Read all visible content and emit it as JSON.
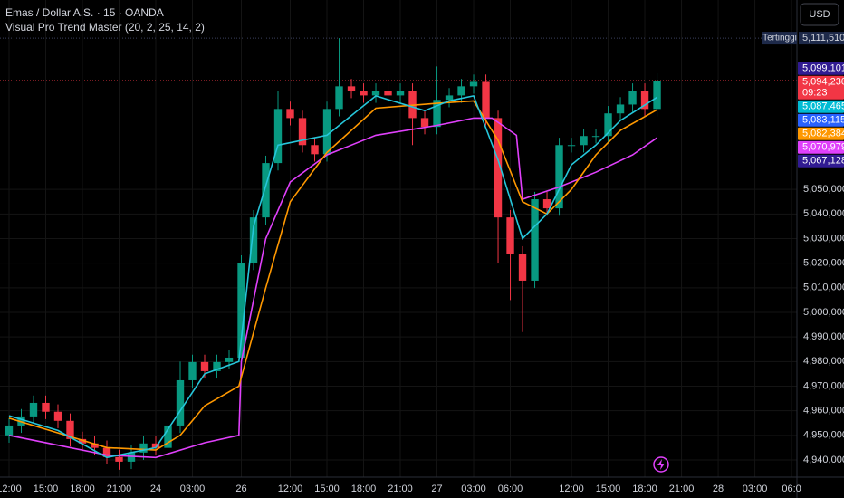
{
  "chart_data": {
    "type": "candlestick",
    "title": "Emas / Dollar A.S. · 15 · OANDA",
    "subtitle": "Visual Pro Trend Master (20, 2, 25, 14, 2)",
    "currency_button": "USD",
    "up_color": "#089981",
    "down_color": "#f23645",
    "grid": true,
    "ylim": [
      4933000,
      5127000
    ],
    "xlim": [
      -0.74,
      64.44
    ],
    "yticks": [
      {
        "value": 4940000,
        "label": "4,940,000"
      },
      {
        "value": 4950000,
        "label": "4,950,000"
      },
      {
        "value": 4960000,
        "label": "4,960,000"
      },
      {
        "value": 4970000,
        "label": "4,970,000"
      },
      {
        "value": 4980000,
        "label": "4,980,000"
      },
      {
        "value": 4990000,
        "label": "4,990,000"
      },
      {
        "value": 5000000,
        "label": "5,000,000"
      },
      {
        "value": 5010000,
        "label": "5,010,000"
      },
      {
        "value": 5020000,
        "label": "5,020,000"
      },
      {
        "value": 5030000,
        "label": "5,030,000"
      },
      {
        "value": 5040000,
        "label": "5,040,000"
      },
      {
        "value": 5050000,
        "label": "5,050,000"
      }
    ],
    "xticks": [
      {
        "value": 0,
        "label": "12:00"
      },
      {
        "value": 3,
        "label": "15:00"
      },
      {
        "value": 6,
        "label": "18:00"
      },
      {
        "value": 9,
        "label": "21:00"
      },
      {
        "value": 12,
        "label": "24"
      },
      {
        "value": 15,
        "label": "03:00"
      },
      {
        "value": 19,
        "label": "26"
      },
      {
        "value": 23,
        "label": "12:00"
      },
      {
        "value": 26,
        "label": "15:00"
      },
      {
        "value": 29,
        "label": "18:00"
      },
      {
        "value": 32,
        "label": "21:00"
      },
      {
        "value": 35,
        "label": "27"
      },
      {
        "value": 38,
        "label": "03:00"
      },
      {
        "value": 41,
        "label": "06:00"
      },
      {
        "value": 46,
        "label": "12:00"
      },
      {
        "value": 49,
        "label": "15:00"
      },
      {
        "value": 52,
        "label": "18:00"
      },
      {
        "value": 55,
        "label": "21:00"
      },
      {
        "value": 58,
        "label": "28"
      },
      {
        "value": 61,
        "label": "03:00"
      },
      {
        "value": 64,
        "label": "06:0"
      }
    ],
    "x": [
      0,
      1,
      2,
      3,
      4,
      5,
      6,
      7,
      8,
      9,
      10,
      11,
      12,
      13,
      14,
      15,
      16,
      17,
      18,
      19,
      20,
      21,
      22,
      23,
      24,
      25,
      26,
      27,
      28,
      29,
      30,
      31,
      32,
      33,
      34,
      35,
      36,
      37,
      38,
      39,
      40,
      41,
      42,
      43,
      44,
      45,
      46,
      47,
      48,
      49,
      50,
      51,
      52,
      53
    ],
    "open": [
      4950000,
      4954000,
      4957700,
      4963200,
      4959600,
      4955900,
      4948500,
      4946700,
      4944900,
      4941200,
      4939300,
      4943000,
      4946700,
      4944900,
      4954000,
      4972400,
      4979800,
      4976100,
      4979800,
      4981600,
      5020200,
      5038600,
      5060700,
      5082700,
      5079000,
      5068000,
      5064300,
      5082700,
      5091900,
      5090100,
      5088200,
      5090100,
      5088200,
      5090100,
      5079000,
      5075400,
      5086400,
      5088200,
      5091900,
      5093700,
      5079000,
      5038600,
      5023900,
      5012900,
      5046000,
      5042300,
      5068000,
      5068000,
      5071700,
      5071700,
      5080900,
      5084500,
      5090100,
      5082700
    ],
    "high": [
      4957000,
      4960700,
      4966200,
      4966200,
      4962600,
      4958900,
      4951500,
      4949700,
      4947900,
      4944200,
      4946000,
      4949700,
      4949700,
      4957000,
      4980000,
      4982800,
      4982800,
      4982800,
      4984600,
      5023200,
      5041600,
      5063700,
      5090000,
      5085700,
      5082000,
      5071000,
      5085700,
      5111510,
      5094900,
      5093100,
      5093100,
      5093100,
      5093100,
      5093100,
      5082000,
      5100000,
      5091200,
      5094900,
      5096700,
      5096700,
      5082000,
      5041600,
      5026900,
      5049000,
      5049000,
      5071000,
      5071000,
      5074700,
      5074700,
      5083900,
      5087500,
      5093100,
      5093100,
      5097230
    ],
    "low": [
      4947000,
      4951000,
      4954700,
      4956600,
      4952900,
      4945500,
      4943700,
      4941900,
      4938200,
      4936000,
      4936300,
      4940000,
      4941900,
      4938000,
      4951000,
      4969400,
      4973100,
      4973100,
      4976800,
      4978600,
      5017200,
      5035600,
      5057700,
      5076000,
      5065000,
      5061300,
      5061300,
      5079700,
      5087100,
      5085200,
      5085200,
      5085200,
      5085200,
      5068000,
      5072400,
      5072400,
      5083400,
      5085200,
      5088900,
      5076000,
      5020000,
      5005000,
      4992000,
      5009900,
      5039300,
      5039300,
      5065000,
      5065000,
      5068700,
      5068700,
      5077900,
      5081500,
      5079700,
      5079700
    ],
    "close": [
      4954000,
      4957700,
      4963200,
      4959600,
      4955900,
      4948500,
      4946700,
      4944900,
      4941200,
      4939300,
      4943000,
      4946700,
      4944900,
      4954000,
      4972400,
      4979800,
      4976100,
      4979800,
      4981600,
      5020200,
      5038600,
      5060700,
      5082700,
      5079000,
      5068000,
      5064300,
      5082700,
      5091900,
      5090100,
      5088200,
      5090100,
      5088200,
      5090100,
      5079000,
      5075400,
      5086400,
      5088200,
      5091900,
      5093700,
      5079000,
      5038600,
      5023900,
      5012900,
      5046000,
      5042300,
      5068000,
      5068000,
      5071700,
      5071700,
      5080900,
      5084500,
      5090100,
      5082700,
      5094230
    ],
    "series": [
      {
        "color": "#e040fb",
        "x": [
          0,
          4,
          8,
          12,
          16,
          18.8,
          19,
          21,
          23,
          26,
          30,
          35,
          38,
          39.5,
          41.5,
          42,
          45,
          48,
          51,
          53
        ],
        "values": [
          4950000,
          4946000,
          4942000,
          4941000,
          4947000,
          4950000,
          4980000,
          5030000,
          5053000,
          5064000,
          5072000,
          5076000,
          5079000,
          5079000,
          5072000,
          5046000,
          5051000,
          5057000,
          5064000,
          5070979
        ]
      },
      {
        "color": "#ff9800",
        "x": [
          0,
          4,
          8,
          12,
          14,
          16,
          18.8,
          21,
          23,
          26,
          30,
          35,
          38,
          40,
          42,
          44,
          46,
          48,
          50,
          53
        ],
        "values": [
          4957000,
          4951000,
          4945000,
          4944000,
          4950000,
          4962000,
          4970000,
          5010000,
          5045000,
          5065000,
          5083000,
          5085000,
          5086000,
          5070000,
          5045000,
          5040000,
          5050000,
          5064000,
          5074000,
          5082384
        ]
      },
      {
        "color": "#26c6da",
        "x": [
          0,
          4,
          8,
          12,
          14,
          16,
          18.8,
          20,
          22,
          24,
          26,
          30,
          34,
          36,
          38,
          40,
          42,
          44,
          46,
          48,
          50,
          53
        ],
        "values": [
          4958000,
          4952000,
          4941000,
          4945000,
          4960000,
          4975000,
          4980000,
          5035000,
          5068000,
          5070000,
          5072000,
          5088000,
          5082000,
          5086000,
          5088000,
          5062000,
          5030000,
          5040000,
          5060000,
          5068000,
          5078000,
          5087465
        ]
      }
    ],
    "highest": {
      "name": "Tertinggi",
      "value": 5111510,
      "label": "5,111,510"
    },
    "price_labels": [
      {
        "value": 5099101,
        "label": "5,099,101",
        "color": "#311b92"
      },
      {
        "value": 5094230,
        "label": "5,094,230",
        "color": "#f23645",
        "countdown": "09:23"
      },
      {
        "value": 5087465,
        "label": "5,087,465",
        "color": "#00bcd4"
      },
      {
        "value": 5083115,
        "label": "5,083,115",
        "color": "#2962ff"
      },
      {
        "value": 5082384,
        "label": "5,082,384",
        "color": "#ff9800"
      },
      {
        "value": 5070979,
        "label": "5,070,979",
        "color": "#e040fb"
      },
      {
        "value": 5067128,
        "label": "5,067,128",
        "color": "#311b92"
      }
    ]
  }
}
